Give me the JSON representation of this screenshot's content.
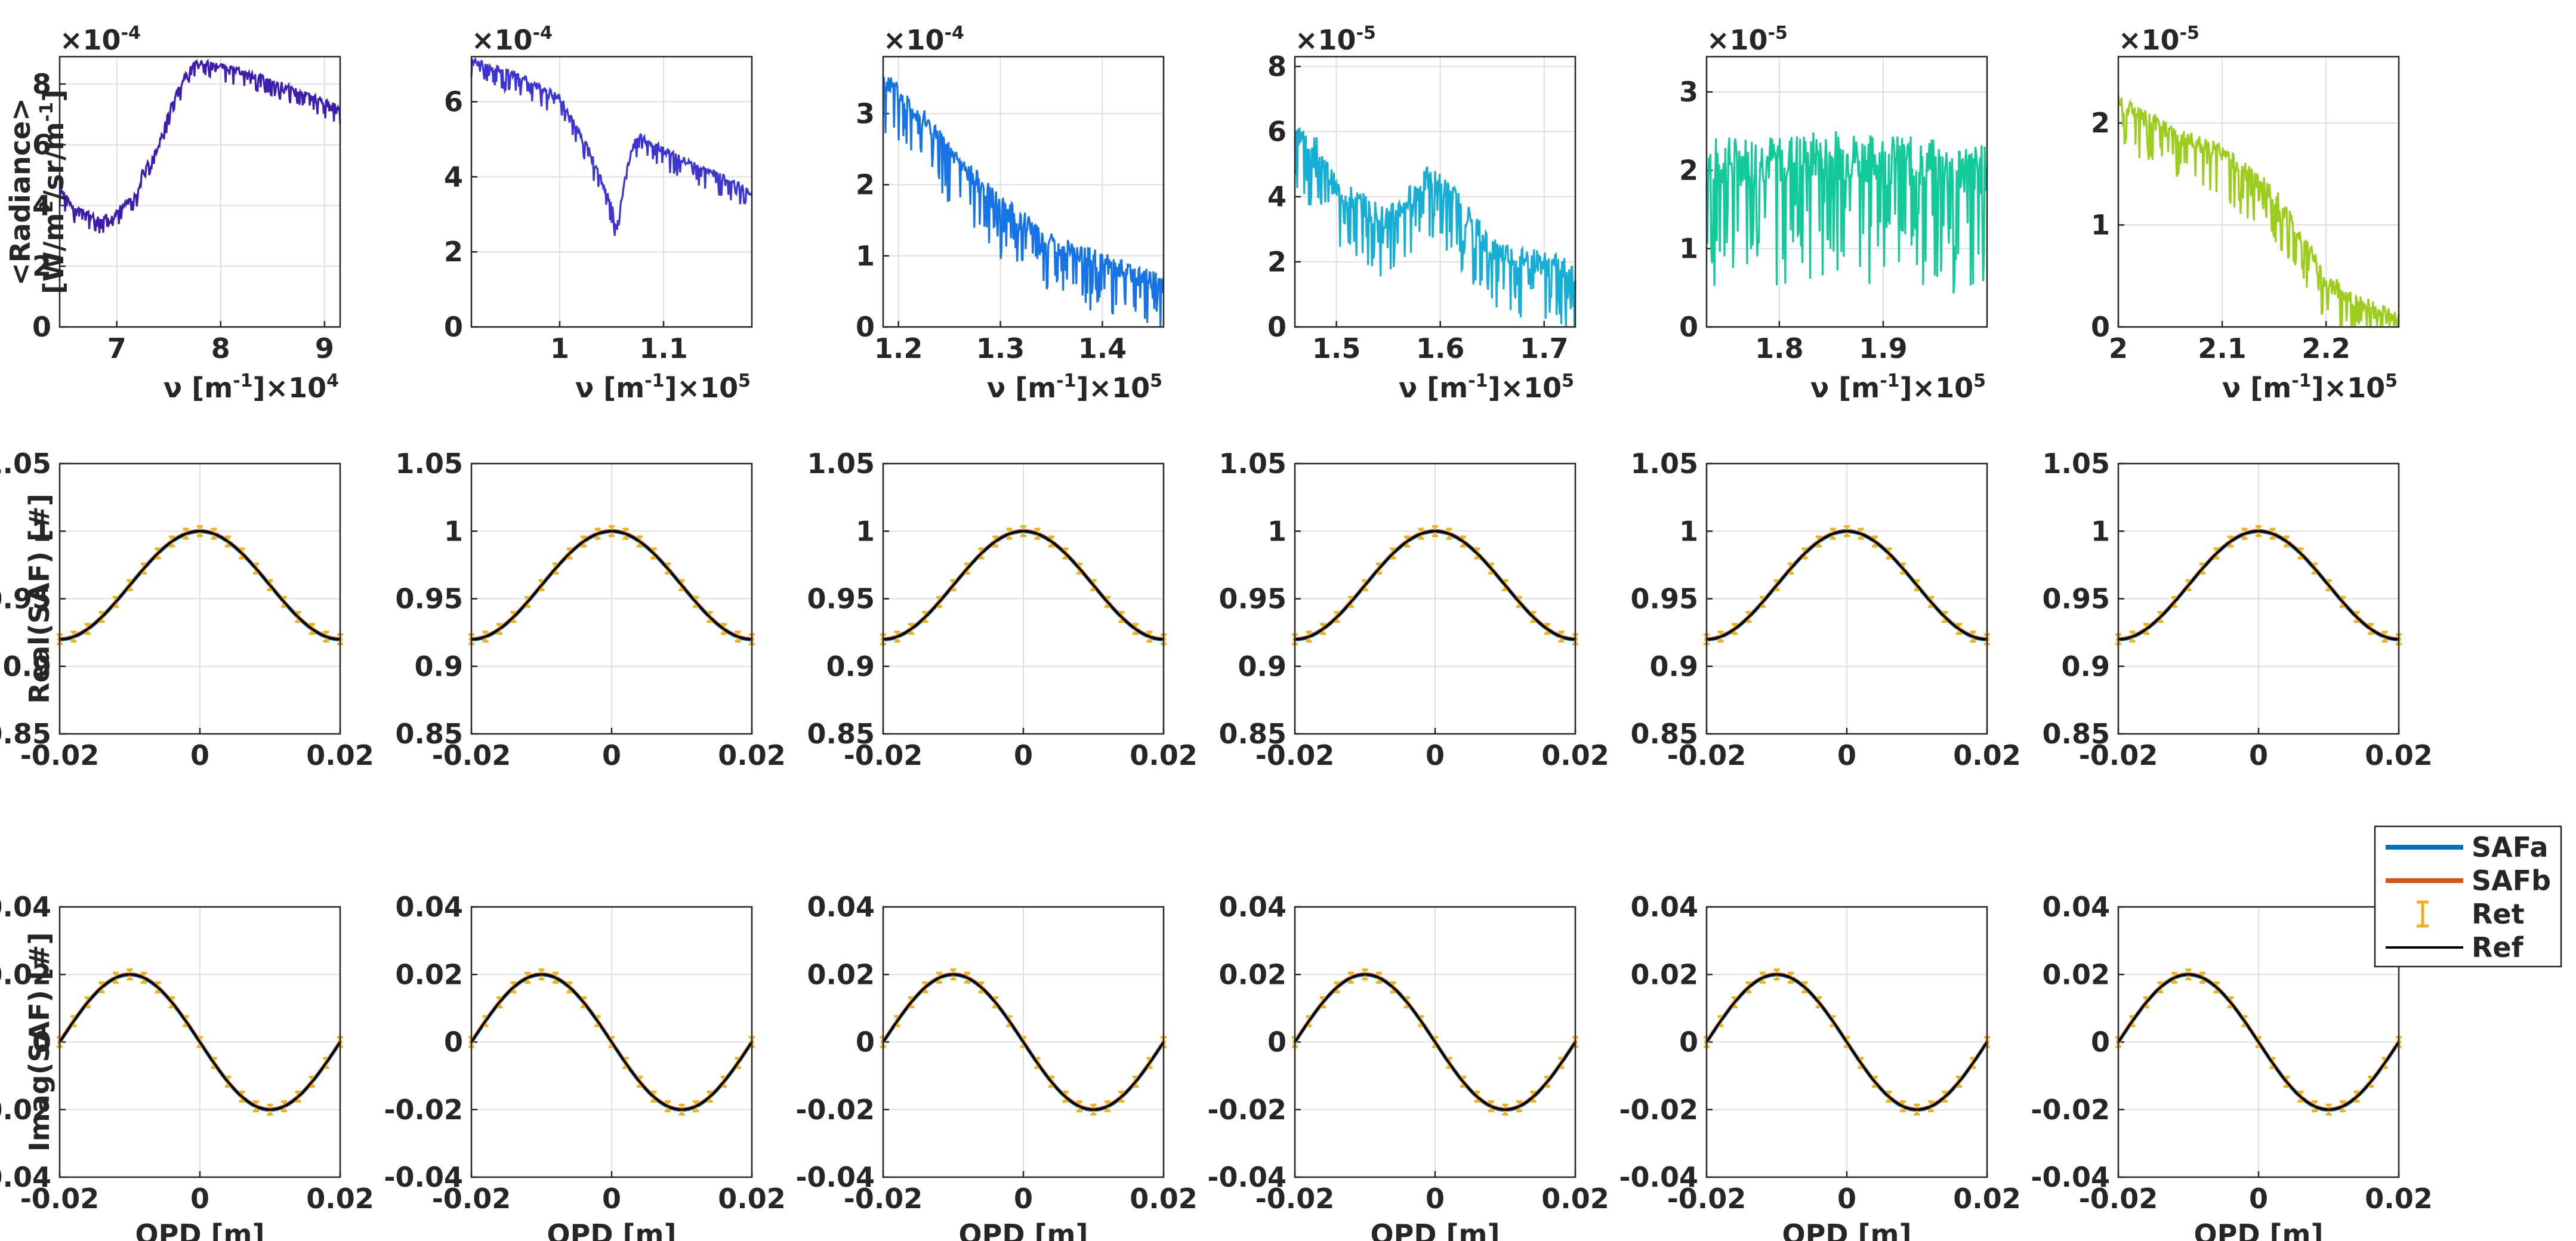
{
  "chart_data": {
    "type": "line",
    "layout": "3 rows x 6 columns",
    "rows": [
      {
        "name": "radiance",
        "ylabel": [
          "<Radiance>",
          "[W/m{2}/sr/m{-1}]"
        ],
        "panels": [
          {
            "xlabel": "ν [m{-1}]×10{4}",
            "exponent": "×10{-4}",
            "color": "#3e1cb0",
            "xlim": [
              6.45,
              9.15
            ],
            "ylim": [
              0,
              8.9
            ],
            "xticks": [
              "7",
              "8",
              "9"
            ],
            "xtick_values": [
              7,
              8,
              9
            ],
            "yticks": [
              "0",
              "2",
              "4",
              "6",
              "8"
            ],
            "ytick_values": [
              0,
              2,
              4,
              6,
              8
            ],
            "trend": [
              [
                6.45,
                4.5
              ],
              [
                6.6,
                3.9
              ],
              [
                6.85,
                3.5
              ],
              [
                7.0,
                3.8
              ],
              [
                7.2,
                4.4
              ],
              [
                7.25,
                5.2
              ],
              [
                7.4,
                5.9
              ],
              [
                7.5,
                7.1
              ],
              [
                7.7,
                8.6
              ],
              [
                7.8,
                8.7
              ],
              [
                8.0,
                8.6
              ],
              [
                8.5,
                8.1
              ],
              [
                9.15,
                7.2
              ]
            ],
            "noise": 0.35
          },
          {
            "xlabel": "ν [m{-1}]×10{5}",
            "exponent": "×10{-4}",
            "color": "#3d35d1",
            "xlim": [
              0.915,
              1.185
            ],
            "ylim": [
              0,
              7.2
            ],
            "xticks": [
              "1",
              "1.1"
            ],
            "xtick_values": [
              1.0,
              1.1
            ],
            "yticks": [
              "0",
              "2",
              "4",
              "6"
            ],
            "ytick_values": [
              0,
              2,
              4,
              6
            ],
            "trend": [
              [
                0.915,
                7.1
              ],
              [
                0.96,
                6.7
              ],
              [
                1.0,
                6.1
              ],
              [
                1.03,
                4.6
              ],
              [
                1.05,
                3.2
              ],
              [
                1.055,
                2.6
              ],
              [
                1.065,
                4.3
              ],
              [
                1.075,
                5.1
              ],
              [
                1.1,
                4.7
              ],
              [
                1.14,
                4.2
              ],
              [
                1.185,
                3.6
              ]
            ],
            "noise": 0.35
          },
          {
            "xlabel": "ν [m{-1}]×10{5}",
            "exponent": "×10{-4}",
            "color": "#1573e6",
            "xlim": [
              1.185,
              1.46
            ],
            "ylim": [
              0,
              3.8
            ],
            "xticks": [
              "1.2",
              "1.3",
              "1.4"
            ],
            "xtick_values": [
              1.2,
              1.3,
              1.4
            ],
            "yticks": [
              "0",
              "1",
              "2",
              "3"
            ],
            "ytick_values": [
              0,
              1,
              2,
              3
            ],
            "trend": [
              [
                1.185,
                3.5
              ],
              [
                1.22,
                3.0
              ],
              [
                1.26,
                2.3
              ],
              [
                1.3,
                1.7
              ],
              [
                1.35,
                1.2
              ],
              [
                1.4,
                0.9
              ],
              [
                1.46,
                0.6
              ]
            ],
            "noise": 0.5
          },
          {
            "xlabel": "ν [m{-1}]×10{5}",
            "exponent": "×10{-5}",
            "color": "#16aed4",
            "xlim": [
              1.46,
              1.73
            ],
            "ylim": [
              0,
              8.3
            ],
            "xticks": [
              "1.5",
              "1.6",
              "1.7"
            ],
            "xtick_values": [
              1.5,
              1.6,
              1.7
            ],
            "yticks": [
              "0",
              "2",
              "4",
              "6",
              "8"
            ],
            "ytick_values": [
              0,
              2,
              4,
              6,
              8
            ],
            "trend": [
              [
                1.46,
                6.0
              ],
              [
                1.48,
                5.5
              ],
              [
                1.5,
                4.2
              ],
              [
                1.55,
                3.3
              ],
              [
                1.59,
                4.6
              ],
              [
                1.61,
                4.1
              ],
              [
                1.65,
                2.4
              ],
              [
                1.73,
                1.7
              ]
            ],
            "noise": 1.3
          },
          {
            "xlabel": "ν [m{-1}]×10{5}",
            "exponent": "×10{-5}",
            "color": "#12c99a",
            "xlim": [
              1.73,
              2.0
            ],
            "ylim": [
              0,
              3.45
            ],
            "xticks": [
              "1.8",
              "1.9"
            ],
            "xtick_values": [
              1.8,
              1.9
            ],
            "yticks": [
              "0",
              "1",
              "2",
              "3"
            ],
            "ytick_values": [
              0,
              1,
              2,
              3
            ],
            "trend": [
              [
                1.73,
                2.1
              ],
              [
                1.86,
                2.2
              ],
              [
                2.0,
                2.0
              ]
            ],
            "noise": 1.1
          },
          {
            "xlabel": "ν [m{-1}]×10{5}",
            "exponent": "×10{-5}",
            "color": "#9ccc1c",
            "xlim": [
              2.0,
              2.27
            ],
            "ylim": [
              0,
              2.65
            ],
            "xticks": [
              "2",
              "2.1",
              "2.2"
            ],
            "xtick_values": [
              2.0,
              2.1,
              2.2
            ],
            "yticks": [
              "0",
              "1",
              "2"
            ],
            "ytick_values": [
              0,
              1,
              2
            ],
            "trend": [
              [
                2.0,
                2.2
              ],
              [
                2.05,
                1.9
              ],
              [
                2.1,
                1.7
              ],
              [
                2.15,
                1.3
              ],
              [
                2.18,
                0.8
              ],
              [
                2.2,
                0.45
              ],
              [
                2.22,
                0.3
              ],
              [
                2.24,
                0.2
              ],
              [
                2.27,
                0.05
              ]
            ],
            "noise": 0.3
          }
        ]
      },
      {
        "name": "real",
        "ylabel": [
          "Real(SAF) [#]"
        ],
        "xlim": [
          -0.02,
          0.02
        ],
        "ylim": [
          0.85,
          1.05
        ],
        "xticks": [
          "-0.02",
          "0",
          "0.02"
        ],
        "xtick_values": [
          -0.02,
          0,
          0.02
        ],
        "yticks": [
          "0.85",
          "0.9",
          "0.95",
          "1",
          "1.05"
        ],
        "ytick_values": [
          0.85,
          0.9,
          0.95,
          1.0,
          1.05
        ],
        "xlabel": "",
        "model": "y = 0.96 + 0.04*cos(pi*x/0.02)",
        "ret_points": 21
      },
      {
        "name": "imag",
        "ylabel": [
          "Imag(SAF) [#]"
        ],
        "xlim": [
          -0.02,
          0.02
        ],
        "ylim": [
          -0.04,
          0.04
        ],
        "xticks": [
          "-0.02",
          "0",
          "0.02"
        ],
        "xtick_values": [
          -0.02,
          0,
          0.02
        ],
        "yticks": [
          "-0.04",
          "-0.02",
          "0",
          "0.02",
          "0.04"
        ],
        "ytick_values": [
          -0.04,
          -0.02,
          0,
          0.02,
          0.04
        ],
        "xlabel": "OPD [m]",
        "model": "y = -0.02*sin(pi*x/0.02)",
        "ret_points": 21
      }
    ],
    "series_colors": {
      "SAFa": "#0072bd",
      "SAFb": "#d95319",
      "Ret": "#edb120",
      "Ref": "#000000"
    },
    "legend": {
      "placement": "right of bottom-right panel",
      "entries": [
        {
          "label": "SAFa",
          "style": "line",
          "color": "#0072bd"
        },
        {
          "label": "SAFb",
          "style": "line",
          "color": "#d95319"
        },
        {
          "label": "Ret",
          "style": "errorbar",
          "color": "#edb120"
        },
        {
          "label": "Ref",
          "style": "line",
          "color": "#000000"
        }
      ]
    }
  }
}
